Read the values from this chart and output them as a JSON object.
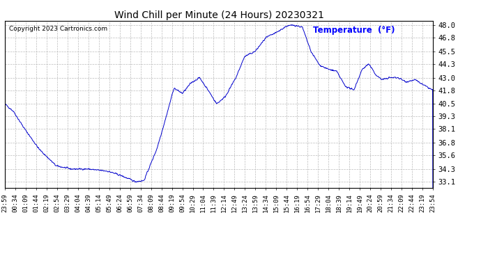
{
  "title": "Wind Chill per Minute (24 Hours) 20230321",
  "copyright": "Copyright 2023 Cartronics.com",
  "legend_label": "Temperature  (°F)",
  "yticks": [
    33.1,
    34.3,
    35.6,
    36.8,
    38.1,
    39.3,
    40.5,
    41.8,
    43.0,
    44.3,
    45.5,
    46.8,
    48.0
  ],
  "ymin": 32.5,
  "ymax": 48.4,
  "line_color": "#0000cc",
  "background_color": "#ffffff",
  "grid_color": "#bbbbbb",
  "title_color": "#000000",
  "legend_color": "#0000ff",
  "copyright_color": "#000000",
  "x_labels": [
    "23:59",
    "00:34",
    "01:09",
    "01:44",
    "02:19",
    "02:54",
    "03:29",
    "04:04",
    "04:39",
    "05:14",
    "05:49",
    "06:24",
    "06:59",
    "07:34",
    "08:09",
    "08:44",
    "09:19",
    "09:54",
    "10:29",
    "11:04",
    "11:39",
    "12:14",
    "12:49",
    "13:24",
    "13:59",
    "14:34",
    "15:09",
    "15:44",
    "16:19",
    "16:54",
    "17:29",
    "18:04",
    "18:39",
    "19:14",
    "19:49",
    "20:24",
    "20:59",
    "21:34",
    "22:09",
    "22:44",
    "23:19",
    "23:54"
  ],
  "waypoints_t": [
    0.0,
    0.02,
    0.045,
    0.08,
    0.12,
    0.155,
    0.195,
    0.215,
    0.24,
    0.27,
    0.305,
    0.325,
    0.355,
    0.375,
    0.395,
    0.415,
    0.435,
    0.455,
    0.475,
    0.495,
    0.515,
    0.54,
    0.56,
    0.585,
    0.61,
    0.635,
    0.658,
    0.675,
    0.695,
    0.715,
    0.735,
    0.755,
    0.775,
    0.795,
    0.815,
    0.835,
    0.85,
    0.868,
    0.882,
    0.898,
    0.918,
    0.938,
    0.958,
    0.978,
    1.0
  ],
  "waypoints_v": [
    40.5,
    39.8,
    38.2,
    36.2,
    34.6,
    34.3,
    34.3,
    34.2,
    34.1,
    33.7,
    33.1,
    33.2,
    36.2,
    39.0,
    42.0,
    41.5,
    42.5,
    43.0,
    41.8,
    40.5,
    41.2,
    43.0,
    45.0,
    45.5,
    46.8,
    47.3,
    47.9,
    48.0,
    47.8,
    45.5,
    44.2,
    43.8,
    43.6,
    42.2,
    41.8,
    43.8,
    44.3,
    43.2,
    42.8,
    43.0,
    43.0,
    42.6,
    42.8,
    42.3,
    41.8
  ]
}
